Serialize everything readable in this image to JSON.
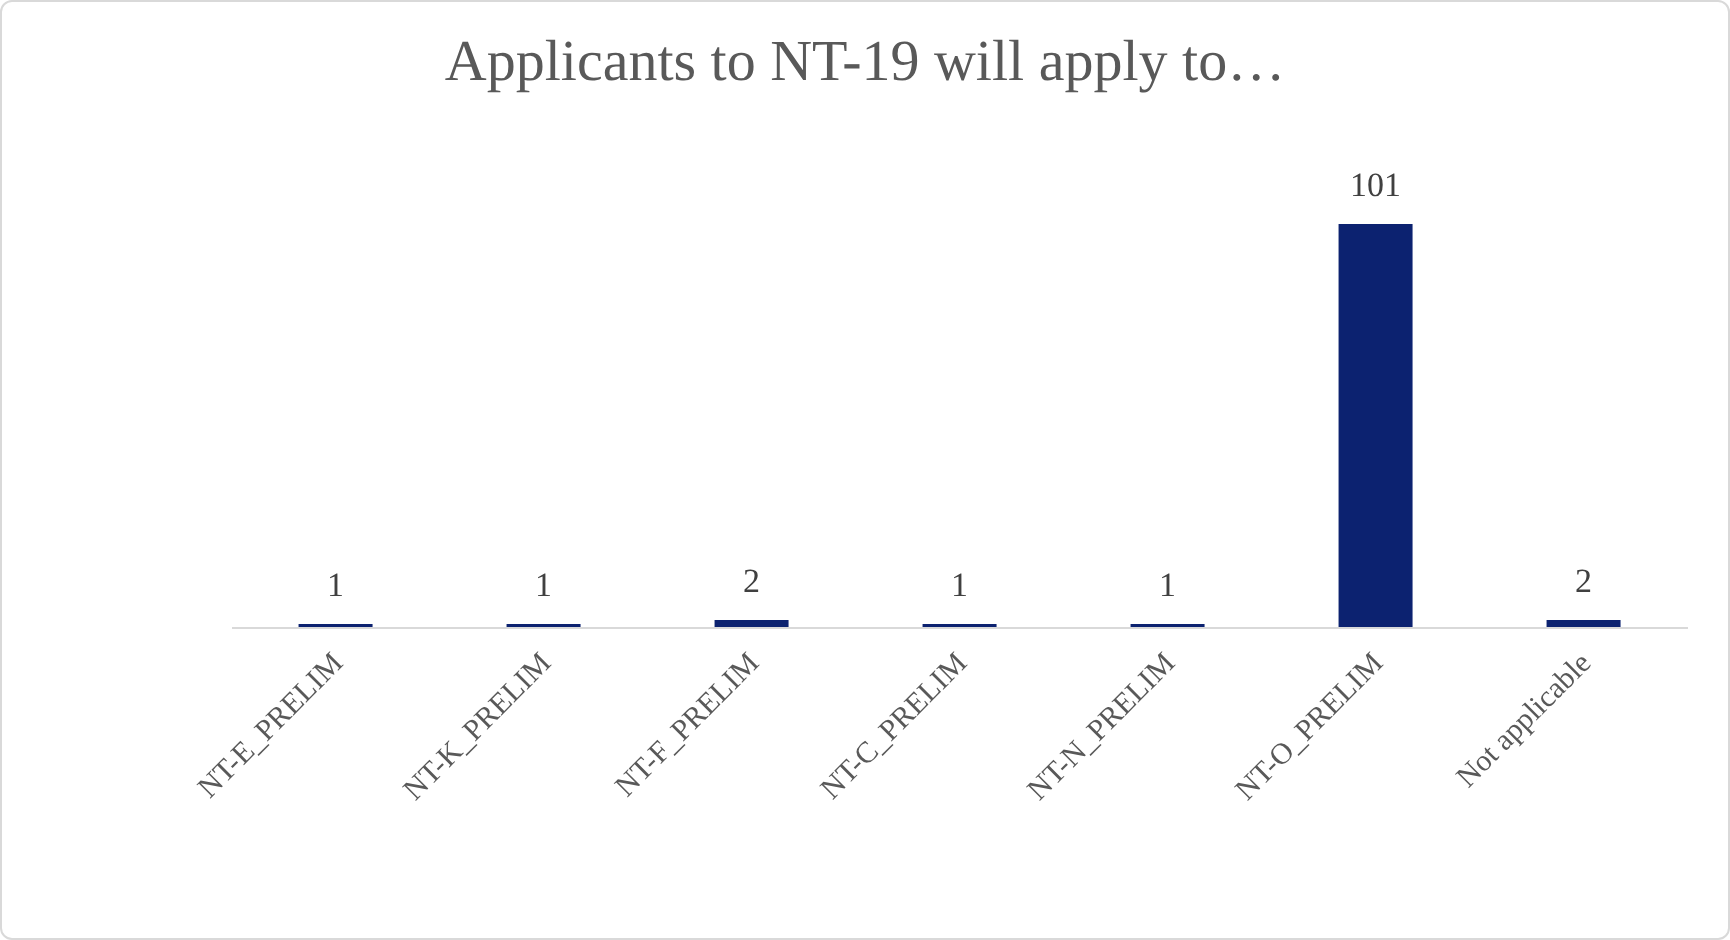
{
  "chart_data": {
    "type": "bar",
    "title": "Applicants to NT-19 will apply to…",
    "categories": [
      "NT-E_PRELIM",
      "NT-K_PRELIM",
      "NT-F_PRELIM",
      "NT-C_PRELIM",
      "NT-N_PRELIM",
      "NT-O_PRELIM",
      "Not applicable"
    ],
    "values": [
      1,
      1,
      2,
      1,
      1,
      101,
      2
    ],
    "color": "#0c2270",
    "data_labels": true
  }
}
